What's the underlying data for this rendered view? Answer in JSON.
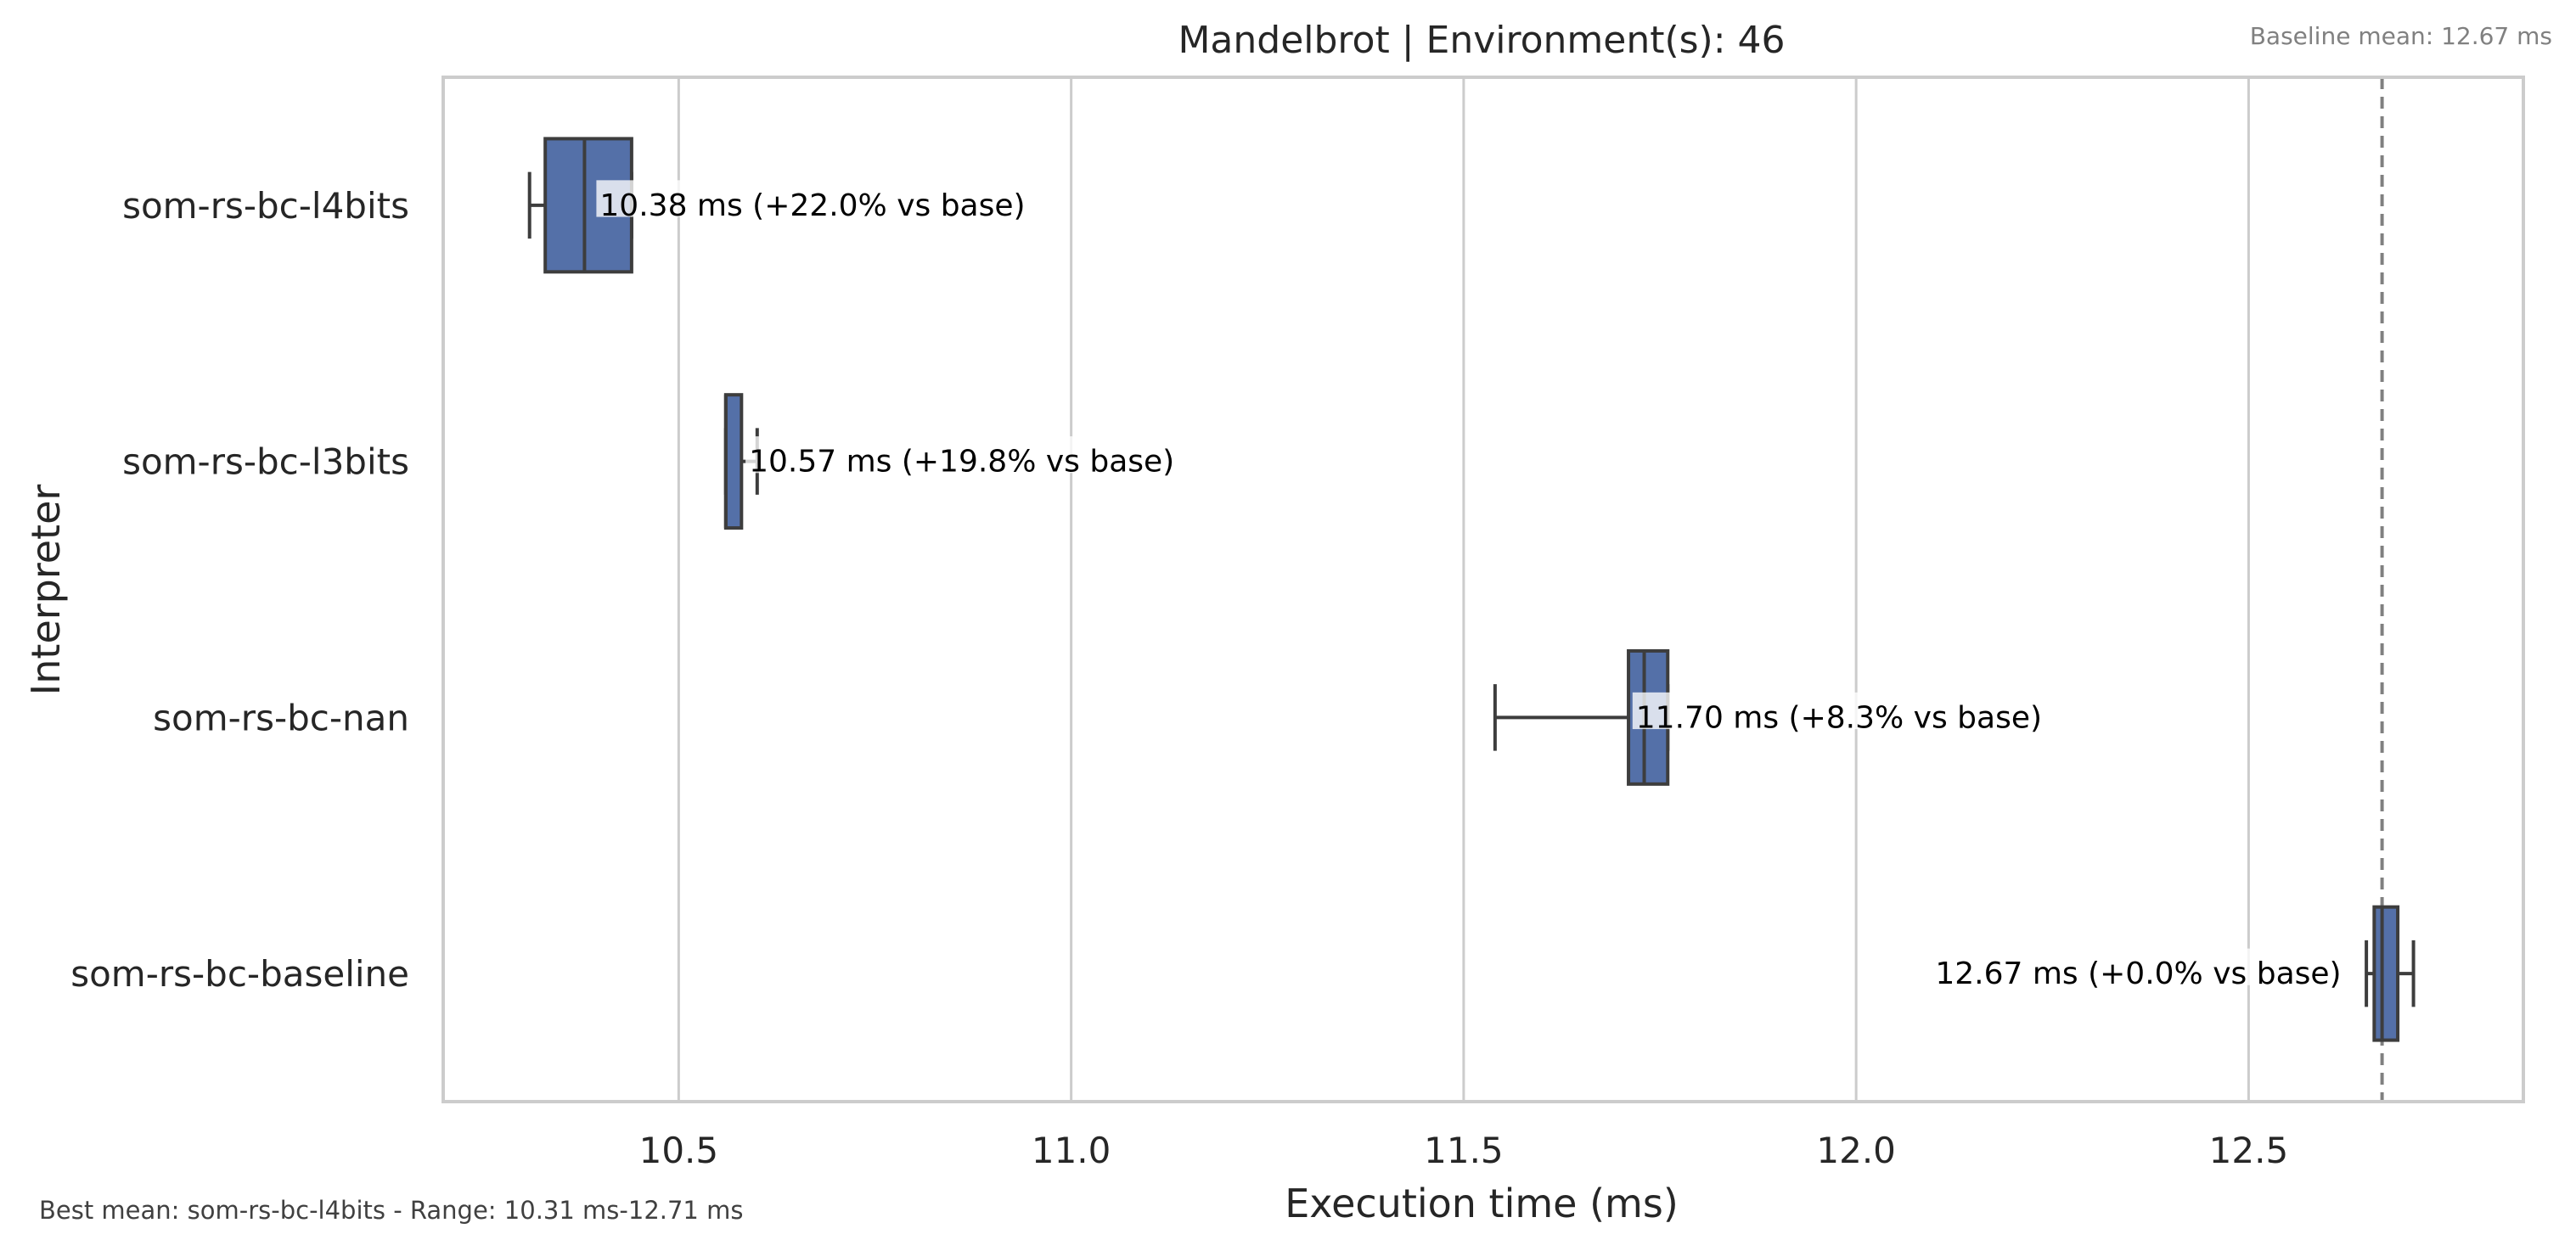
{
  "chart_data": {
    "type": "box",
    "title": "Mandelbrot | Environment(s): 46",
    "xlabel": "Execution time (ms)",
    "ylabel": "Interpreter",
    "xlim": [
      10.2,
      12.85
    ],
    "xticks": [
      "10.5",
      "11.0",
      "11.5",
      "12.0",
      "12.5"
    ],
    "xtick_values": [
      10.5,
      11.0,
      11.5,
      12.0,
      12.5
    ],
    "grid": "vertical",
    "baseline_note": "Baseline mean: 12.67 ms",
    "baseline_value": 12.67,
    "footer_note": "Best mean: som-rs-bc-l4bits - Range: 10.31 ms-12.71 ms",
    "box_color": "#5470a8",
    "categories": [
      "som-rs-bc-l4bits",
      "som-rs-bc-l3bits",
      "som-rs-bc-nan",
      "som-rs-bc-baseline"
    ],
    "boxes": [
      {
        "name": "som-rs-bc-l4bits",
        "whisker_low": 10.31,
        "q1": 10.33,
        "median": 10.38,
        "q3": 10.44,
        "whisker_high": 10.44,
        "mean": 10.38,
        "label": "10.38 ms  (+22.0% vs base)",
        "label_side": "right"
      },
      {
        "name": "som-rs-bc-l3bits",
        "whisker_low": 10.56,
        "q1": 10.56,
        "median": 10.56,
        "q3": 10.58,
        "whisker_high": 10.6,
        "mean": 10.57,
        "label": "10.57 ms  (+19.8% vs base)",
        "label_side": "right"
      },
      {
        "name": "som-rs-bc-nan",
        "whisker_low": 11.54,
        "q1": 11.71,
        "median": 11.73,
        "q3": 11.76,
        "whisker_high": 11.76,
        "mean": 11.7,
        "label": "11.70 ms  (+8.3% vs base)",
        "label_side": "right"
      },
      {
        "name": "som-rs-bc-baseline",
        "whisker_low": 12.65,
        "q1": 12.66,
        "median": 12.67,
        "q3": 12.69,
        "whisker_high": 12.71,
        "mean": 12.67,
        "label": "12.67 ms  (+0.0% vs base)",
        "label_side": "left"
      }
    ]
  }
}
